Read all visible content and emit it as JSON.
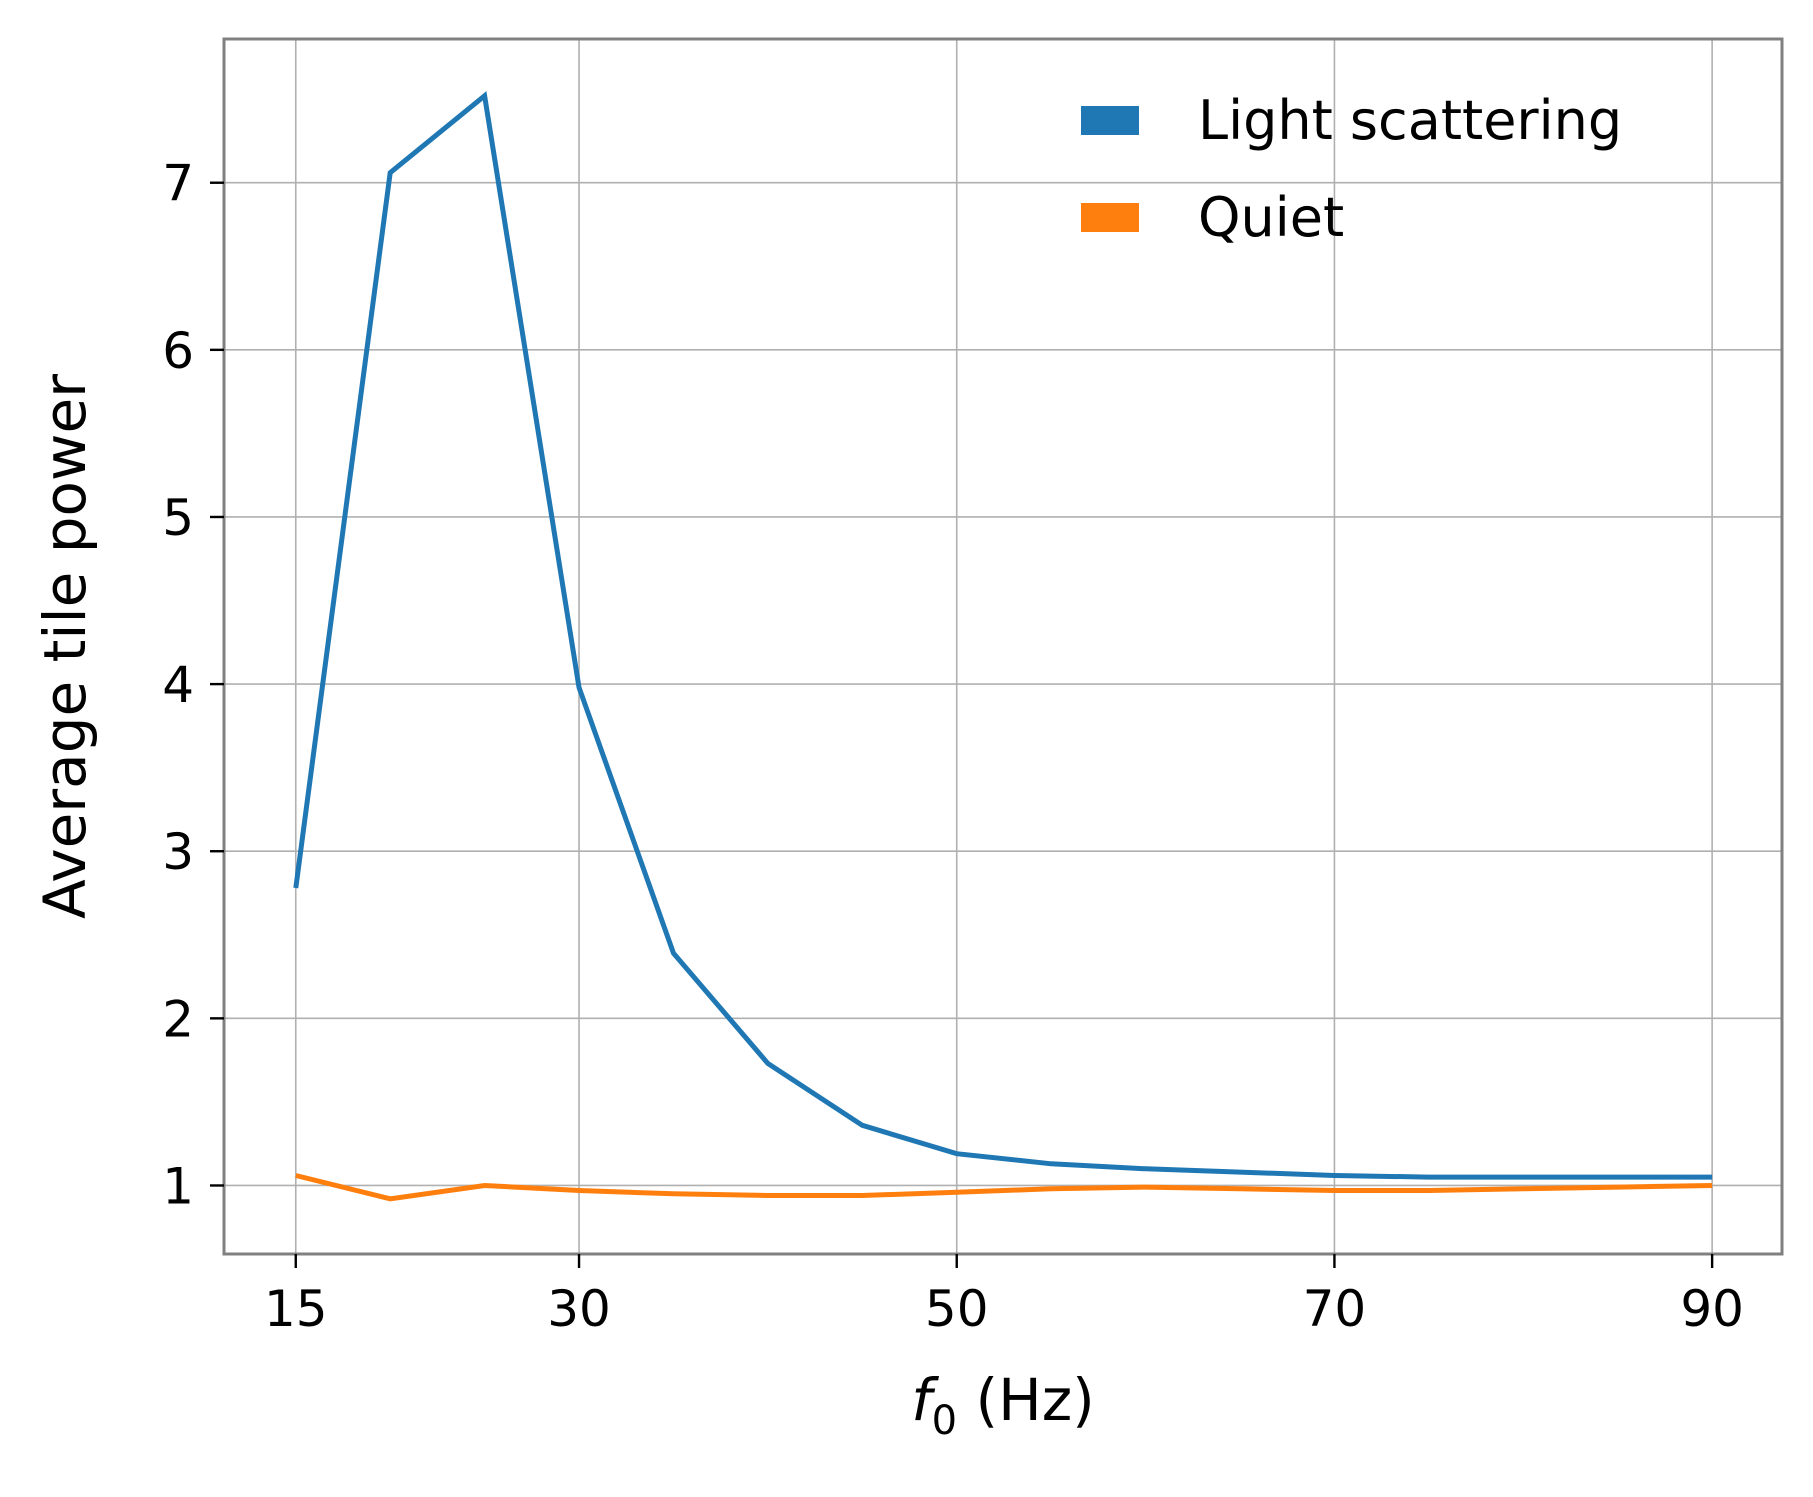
{
  "chart_data": {
    "type": "line",
    "title": "",
    "xlabel": {
      "main": "f",
      "subscript": "0",
      "suffix": " (Hz)"
    },
    "ylabel": "Average tile power",
    "xlim": [
      11.2,
      93.7
    ],
    "ylim": [
      0.59,
      7.86
    ],
    "x_ticks": [
      15,
      30,
      50,
      70,
      90
    ],
    "x_tick_labels": [
      "15",
      "30",
      "50",
      "70",
      "90"
    ],
    "y_ticks": [
      1,
      2,
      3,
      4,
      5,
      6,
      7
    ],
    "y_tick_labels": [
      "1",
      "2",
      "3",
      "4",
      "5",
      "6",
      "7"
    ],
    "grid": true,
    "legend_position": "top-right",
    "series": [
      {
        "name": "Light scattering",
        "color": "#1f77b4",
        "x": [
          15,
          20,
          25,
          30,
          35,
          40,
          45,
          50,
          55,
          60,
          65,
          70,
          75,
          80,
          85,
          90
        ],
        "y": [
          2.78,
          7.06,
          7.52,
          3.98,
          2.39,
          1.73,
          1.36,
          1.19,
          1.13,
          1.1,
          1.08,
          1.06,
          1.05,
          1.05,
          1.05,
          1.05
        ]
      },
      {
        "name": "Quiet",
        "color": "#ff7f0e",
        "x": [
          15,
          20,
          25,
          30,
          35,
          40,
          45,
          50,
          55,
          60,
          65,
          70,
          75,
          80,
          85,
          90
        ],
        "y": [
          1.06,
          0.92,
          1.0,
          0.97,
          0.95,
          0.94,
          0.94,
          0.96,
          0.98,
          0.99,
          0.98,
          0.97,
          0.97,
          0.98,
          0.99,
          1.0
        ]
      }
    ]
  }
}
